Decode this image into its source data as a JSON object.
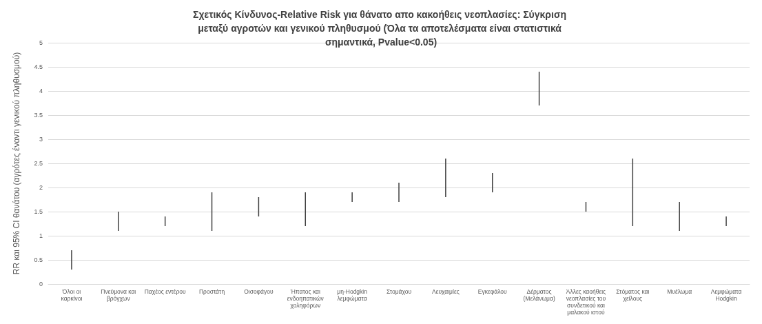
{
  "chart_data": {
    "type": "bar",
    "title": "Σχετικός Κίνδυνος-Relative Risk για θάνατο απο κακοήθεις νεοπλασίες: Σύγκριση μεταξύ αγροτών και γενικού πληθυσμού (Όλα τα αποτελέσματα είναι στατιστικά σημαντικά, Pvalue<0.05)",
    "ylabel": "RR και 95% CI θανάτου (αγρότες έναντι γενικού πληθυσμού)",
    "categories": [
      "Όλοι οι καρκίνοι",
      "Πνεύμονα και βρόγχων",
      "Παχέος εντέρου",
      "Προστάτη",
      "Οισοφάγου",
      "Ήπατος και ενδοηπατικών χοληφόρων",
      "μη-Hodgkin λεμφώματα",
      "Στομάχου",
      "Λευχαιμίες",
      "Εγκεφάλου",
      "Δέρματος (Μελάνωμα)",
      "Άλλες καοήθεις νεοπλασίες του συνδετικού και μαλακού ιστού",
      "Στόματος και χείλους",
      "Μυέλωμα",
      "Λεμφώματα Hodgkin"
    ],
    "base": [
      0.3,
      1.1,
      1.2,
      1.1,
      1.4,
      1.2,
      1.7,
      1.7,
      1.8,
      1.9,
      3.7,
      1.5,
      1.2,
      1.1,
      1.2
    ],
    "values": [
      0.4,
      0.4,
      0.2,
      0.8,
      0.4,
      0.7,
      0.2,
      0.4,
      0.8,
      0.4,
      0.7,
      0.2,
      1.4,
      0.6,
      0.2
    ],
    "color": "#404040",
    "ylim": [
      0,
      5
    ],
    "yticks": [
      0,
      0.5,
      1,
      1.5,
      2,
      2.5,
      3,
      3.5,
      4,
      4.5,
      5
    ],
    "grid": "y"
  }
}
